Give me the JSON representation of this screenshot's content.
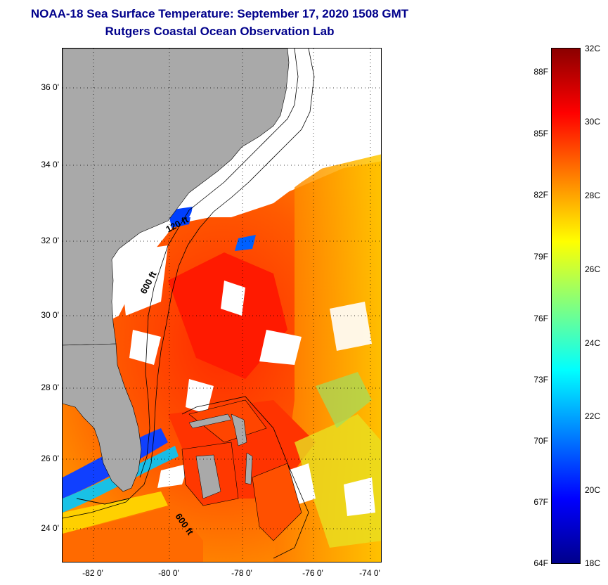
{
  "title": {
    "line1": "NOAA-18 Sea Surface Temperature:  September 17, 2020 1508 GMT",
    "line2": "Rutgers Coastal Ocean Observation Lab"
  },
  "map": {
    "lat_ticks": [
      {
        "value": 36,
        "label": "36 0'"
      },
      {
        "value": 34,
        "label": "34 0'"
      },
      {
        "value": 32,
        "label": "32 0'"
      },
      {
        "value": 30,
        "label": "30 0'"
      },
      {
        "value": 28,
        "label": "28 0'"
      },
      {
        "value": 26,
        "label": "26 0'"
      },
      {
        "value": 24,
        "label": "24 0'"
      }
    ],
    "lon_ticks": [
      {
        "value": -82,
        "label": "-82 0'"
      },
      {
        "value": -80,
        "label": "-80 0'"
      },
      {
        "value": -78,
        "label": "-78 0'"
      },
      {
        "value": -76,
        "label": "-76 0'"
      },
      {
        "value": -74,
        "label": "-74 0'"
      }
    ],
    "contour_labels": [
      {
        "text": "120 ft",
        "name": "contour-label-120ft-north"
      },
      {
        "text": "600 ft",
        "name": "contour-label-600ft-north"
      },
      {
        "text": "600 ft",
        "name": "contour-label-600ft-south"
      }
    ],
    "colors": {
      "land": "#a9a9a9",
      "cloud": "#ffffff"
    }
  },
  "colorbar": {
    "fahrenheit_labels": [
      "88F",
      "85F",
      "82F",
      "79F",
      "76F",
      "73F",
      "70F",
      "67F",
      "64F"
    ],
    "celsius_labels": [
      "32C",
      "30C",
      "28C",
      "26C",
      "24C",
      "22C",
      "20C",
      "18C"
    ],
    "colors": [
      "#00008b",
      "#0000ff",
      "#0080ff",
      "#00ffff",
      "#80ff80",
      "#ffff00",
      "#ff8000",
      "#ff0000",
      "#8b0000"
    ]
  }
}
